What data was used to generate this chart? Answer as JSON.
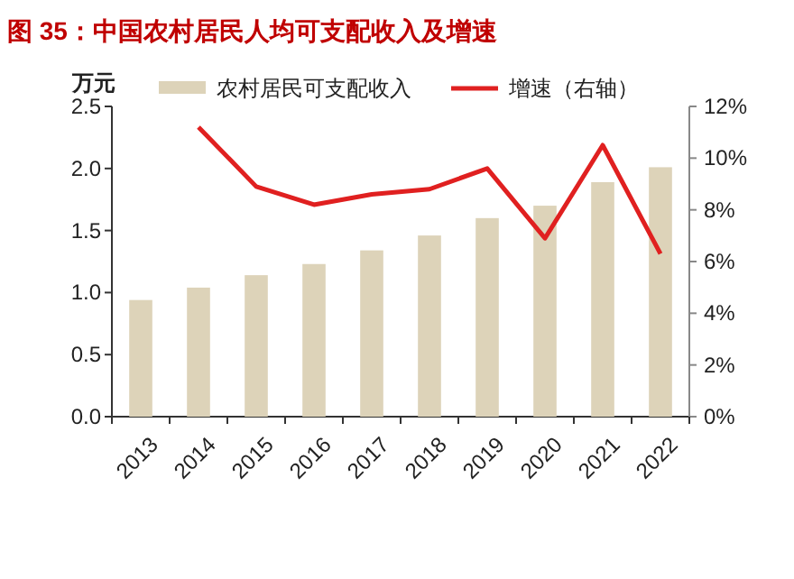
{
  "chart_data": {
    "type": "bar",
    "title": "图 35：中国农村居民人均可支配收入及增速",
    "ylabel": "万元",
    "categories": [
      "2013",
      "2014",
      "2015",
      "2016",
      "2017",
      "2018",
      "2019",
      "2020",
      "2021",
      "2022"
    ],
    "series": [
      {
        "name": "农村居民可支配收入",
        "color": "#ddd3b9",
        "values": [
          0.94,
          1.04,
          1.14,
          1.23,
          1.34,
          1.46,
          1.6,
          1.7,
          1.89,
          2.01
        ]
      },
      {
        "name": "增速（右轴）",
        "type": "line",
        "axis": "y2",
        "color": "#e02020",
        "values": [
          null,
          11.2,
          8.9,
          8.2,
          8.6,
          8.8,
          9.6,
          6.9,
          10.5,
          6.3
        ]
      }
    ],
    "ylim": [
      0,
      2.5
    ],
    "yticks": [
      {
        "value": 0,
        "label": "0.0"
      },
      {
        "value": 0.5,
        "label": "0.5"
      },
      {
        "value": 1,
        "label": "1.0"
      },
      {
        "value": 1.5,
        "label": "1.5"
      },
      {
        "value": 2,
        "label": "2.0"
      },
      {
        "value": 2.5,
        "label": "2.5"
      }
    ],
    "y2lim": [
      0,
      12
    ],
    "y2ticks": [
      {
        "value": 0,
        "label": "0%"
      },
      {
        "value": 2,
        "label": "2%"
      },
      {
        "value": 4,
        "label": "4%"
      },
      {
        "value": 6,
        "label": "6%"
      },
      {
        "value": 8,
        "label": "8%"
      },
      {
        "value": 10,
        "label": "10%"
      },
      {
        "value": 12,
        "label": "12%"
      }
    ],
    "legend": "top",
    "grid": false,
    "marker": "none"
  }
}
